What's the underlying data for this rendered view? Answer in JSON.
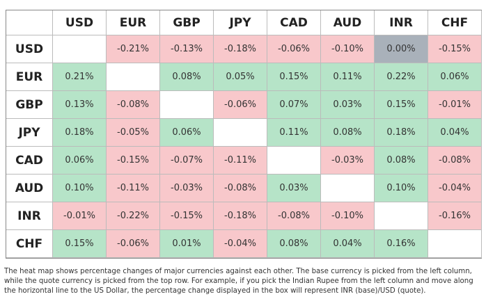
{
  "table": {
    "columns": [
      "USD",
      "EUR",
      "GBP",
      "JPY",
      "CAD",
      "AUD",
      "INR",
      "CHF"
    ],
    "rows": [
      {
        "label": "USD",
        "cells": [
          null,
          "-0.21%",
          "-0.13%",
          "-0.18%",
          "-0.06%",
          "-0.10%",
          "0.00%",
          "-0.15%"
        ]
      },
      {
        "label": "EUR",
        "cells": [
          "0.21%",
          null,
          "0.08%",
          "0.05%",
          "0.15%",
          "0.11%",
          "0.22%",
          "0.06%"
        ]
      },
      {
        "label": "GBP",
        "cells": [
          "0.13%",
          "-0.08%",
          null,
          "-0.06%",
          "0.07%",
          "0.03%",
          "0.15%",
          "-0.01%"
        ]
      },
      {
        "label": "JPY",
        "cells": [
          "0.18%",
          "-0.05%",
          "0.06%",
          null,
          "0.11%",
          "0.08%",
          "0.18%",
          "0.04%"
        ]
      },
      {
        "label": "CAD",
        "cells": [
          "0.06%",
          "-0.15%",
          "-0.07%",
          "-0.11%",
          null,
          "-0.03%",
          "0.08%",
          "-0.08%"
        ]
      },
      {
        "label": "AUD",
        "cells": [
          "0.10%",
          "-0.11%",
          "-0.03%",
          "-0.08%",
          "0.03%",
          null,
          "0.10%",
          "-0.04%"
        ]
      },
      {
        "label": "INR",
        "cells": [
          "-0.01%",
          "-0.22%",
          "-0.15%",
          "-0.18%",
          "-0.08%",
          "-0.10%",
          null,
          "-0.16%"
        ]
      },
      {
        "label": "CHF",
        "cells": [
          "0.15%",
          "-0.06%",
          "0.01%",
          "-0.04%",
          "0.08%",
          "0.04%",
          "0.16%",
          null
        ]
      }
    ]
  },
  "footnote": "The heat map shows percentage changes of major currencies against each other. The base currency is picked from the left column, while the quote currency is picked from the top row. For example, if you pick the Indian Rupee from the left column and move along the horizontal line to the US Dollar, the percentage change displayed in the box will represent INR (base)/USD (quote)."
}
